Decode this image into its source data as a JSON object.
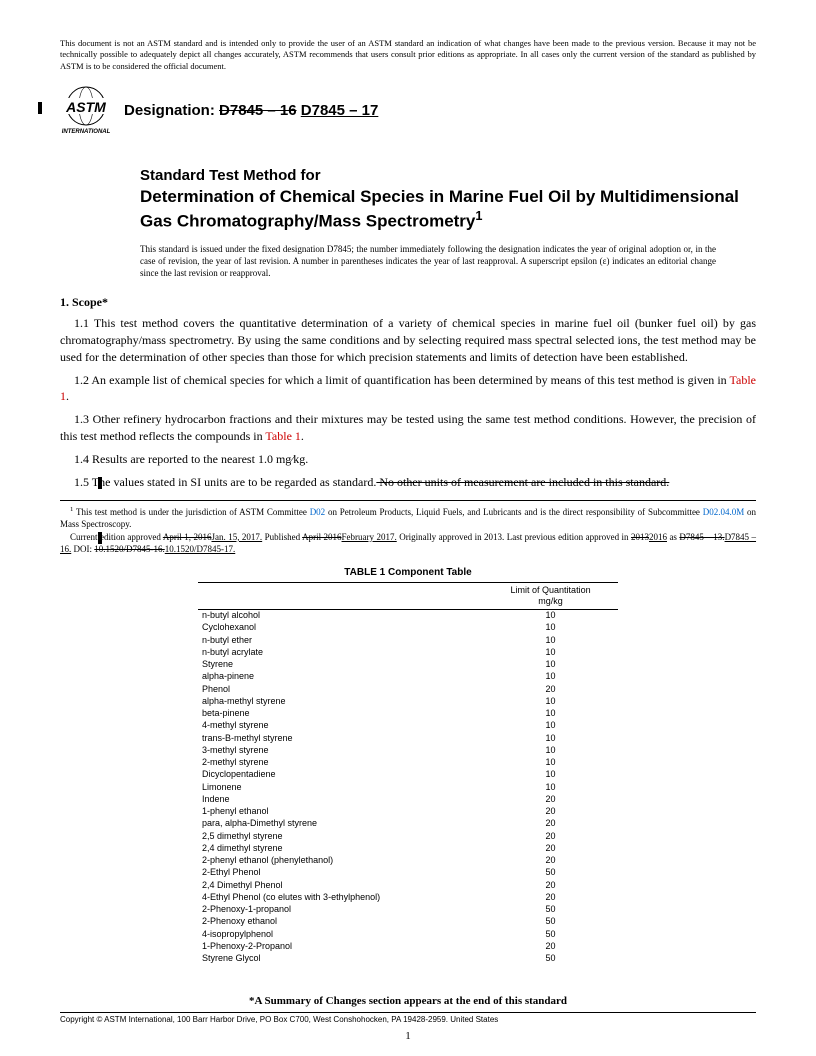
{
  "disclaimer": "This document is not an ASTM standard and is intended only to provide the user of an ASTM standard an indication of what changes have been made to the previous version. Because it may not be technically possible to adequately depict all changes accurately, ASTM recommends that users consult prior editions as appropriate. In all cases only the current version of the standard as published by ASTM is to be considered the official document.",
  "logo_text": "INTERNATIONAL",
  "designation": {
    "label": "Designation:",
    "old": "D7845 – 16",
    "new": "D7845 – 17"
  },
  "title": {
    "line1": "Standard Test Method for",
    "line2": "Determination of Chemical Species in Marine Fuel Oil by Multidimensional Gas Chromatography/Mass Spectrometry",
    "sup": "1"
  },
  "issuance": "This standard is issued under the fixed designation D7845; the number immediately following the designation indicates the year of original adoption or, in the case of revision, the year of last revision. A number in parentheses indicates the year of last reapproval. A superscript epsilon (ε) indicates an editorial change since the last revision or reapproval.",
  "scope": {
    "head": "1.  Scope*",
    "p11": "1.1 This test method covers the quantitative determination of a variety of chemical species in marine fuel oil (bunker fuel oil) by gas chromatography/mass spectrometry. By using the same conditions and by selecting required mass spectral selected ions, the test method may be used for the determination of other species than those for which precision statements and limits of detection have been established.",
    "p12a": "1.2 An example list of chemical species for which a limit of quantification has been determined by means of this test method is given in ",
    "p12b": "Table 1",
    "p12c": ".",
    "p13a": "1.3 Other refinery hydrocarbon fractions and their mixtures may be tested using the same test method conditions. However, the precision of this test method reflects the compounds in ",
    "p13b": "Table 1",
    "p13c": ".",
    "p14": "1.4 Results are reported to the nearest 1.0 mg⁄kg.",
    "p15a": "1.5 The values stated in SI units are to be regarded as standard.",
    "p15b": " No other units of measurement are included in this standard."
  },
  "footnote": {
    "sup": "1",
    "f1a": " This test method is under the jurisdiction of ASTM Committee ",
    "f1b": "D02",
    "f1c": " on Petroleum Products, Liquid Fuels, and Lubricants and is the direct responsibility of Subcommittee ",
    "f1d": "D02.04.0M",
    "f1e": " on Mass Spectroscopy.",
    "f2a": "Current edition approved ",
    "f2b": "April 1, 2016",
    "f2c": "Jan. 15, 2017.",
    "f2d": " Published ",
    "f2e": "April 2016",
    "f2f": "February 2017.",
    "f2g": " Originally approved in 2013. Last previous edition approved in ",
    "f2h": "2013",
    "f2i": "2016",
    "f2j": " as ",
    "f2k": "D7845 – 13.",
    "f2l": "D7845 – 16.",
    "f2m": " DOI: ",
    "f2n": "10.1520/D7845-16.",
    "f2o": "10.1520/D7845-17."
  },
  "table": {
    "title": "TABLE 1 Component Table",
    "col2a": "Limit of Quantitation",
    "col2b": "mg/kg",
    "rows": [
      [
        "n-butyl alcohol",
        "10"
      ],
      [
        "Cyclohexanol",
        "10"
      ],
      [
        "n-butyl ether",
        "10"
      ],
      [
        "n-butyl acrylate",
        "10"
      ],
      [
        "Styrene",
        "10"
      ],
      [
        "alpha-pinene",
        "10"
      ],
      [
        "Phenol",
        "20"
      ],
      [
        "alpha-methyl styrene",
        "10"
      ],
      [
        "beta-pinene",
        "10"
      ],
      [
        "4-methyl styrene",
        "10"
      ],
      [
        "trans-B-methyl styrene",
        "10"
      ],
      [
        "3-methyl styrene",
        "10"
      ],
      [
        "2-methyl styrene",
        "10"
      ],
      [
        "Dicyclopentadiene",
        "10"
      ],
      [
        "Limonene",
        "10"
      ],
      [
        "Indene",
        "20"
      ],
      [
        "1-phenyl ethanol",
        "20"
      ],
      [
        "para, alpha-Dimethyl styrene",
        "20"
      ],
      [
        "2,5 dimethyl styrene",
        "20"
      ],
      [
        "2,4 dimethyl styrene",
        "20"
      ],
      [
        "2-phenyl ethanol (phenylethanol)",
        "20"
      ],
      [
        "2-Ethyl Phenol",
        "50"
      ],
      [
        "2,4 Dimethyl Phenol",
        "20"
      ],
      [
        "4-Ethyl Phenol (co elutes with 3-ethylphenol)",
        "20"
      ],
      [
        "2-Phenoxy-1-propanol",
        "50"
      ],
      [
        "2-Phenoxy ethanol",
        "50"
      ],
      [
        "4-isopropylphenol",
        "50"
      ],
      [
        "1-Phenoxy-2-Propanol",
        "20"
      ],
      [
        "Styrene Glycol",
        "50"
      ]
    ]
  },
  "summary_note": "*A Summary of Changes section appears at the end of this standard",
  "copyright": "Copyright © ASTM International, 100 Barr Harbor Drive, PO Box C700, West Conshohocken, PA 19428-2959. United States",
  "page": "1"
}
